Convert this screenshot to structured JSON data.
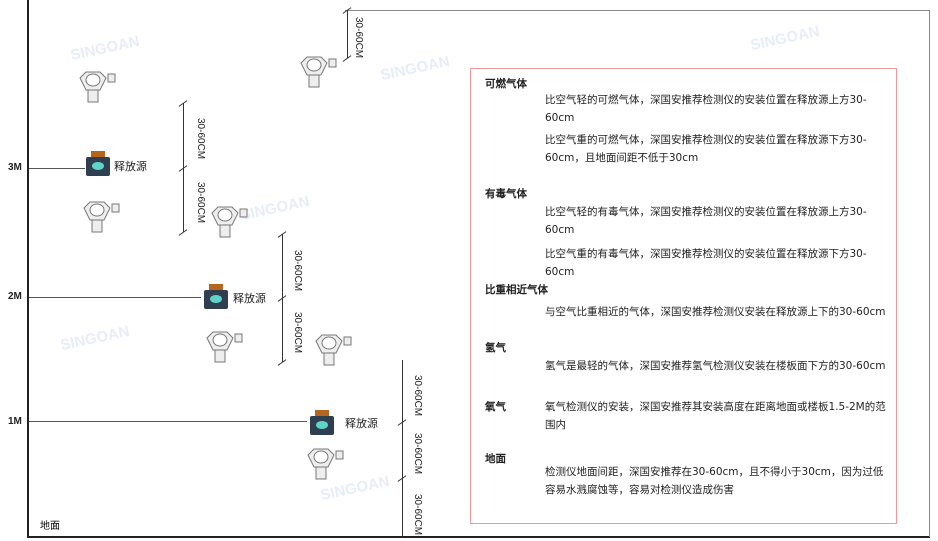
{
  "levels": {
    "m3": "3M",
    "m2": "2M",
    "m1": "1M",
    "ground": "地面"
  },
  "dim_label": "30-60CM",
  "source_label": "释放源",
  "watermark": "SINGOAN 深国安",
  "notes": {
    "combustible": {
      "title": "可燃气体",
      "light": "比空气轻的可燃气体，深国安推荐检测仪的安装位置在释放源上方30-60cm",
      "heavy": "比空气重的可燃气体，深国安推荐检测仪的安装位置在释放源下方30-60cm，且地面间距不低于30cm"
    },
    "toxic": {
      "title": "有毒气体",
      "light": "比空气轻的有毒气体，深国安推荐检测仪的安装位置在释放源上方30-60cm",
      "heavy": "比空气重的有毒气体，深国安推荐检测仪的安装位置在释放源下方30-60cm"
    },
    "similar": {
      "title": "比重相近气体",
      "text": "与空气比重相近的气体，深国安推荐检测仪安装在释放源上下的30-60cm"
    },
    "hydrogen": {
      "title": "氢气",
      "text": "氢气是最轻的气体，深国安推荐氢气检测仪安装在楼板面下方的30-60cm"
    },
    "oxygen": {
      "title": "氧气",
      "text": "氧气检测仪的安装，深国安推荐其安装高度在距离地面或楼板1.5-2M的范围内"
    },
    "ground": {
      "title": "地面",
      "text": "检测仪地面间距，深国安推荐在30-60cm，且不得小于30cm，因为过低容易水溅腐蚀等，容易对检测仪造成伤害"
    }
  },
  "colors": {
    "box_border": "#ee9999",
    "source_body": "#2f3f4f",
    "source_cap": "#b5651d",
    "source_face": "#5fd3c8"
  }
}
